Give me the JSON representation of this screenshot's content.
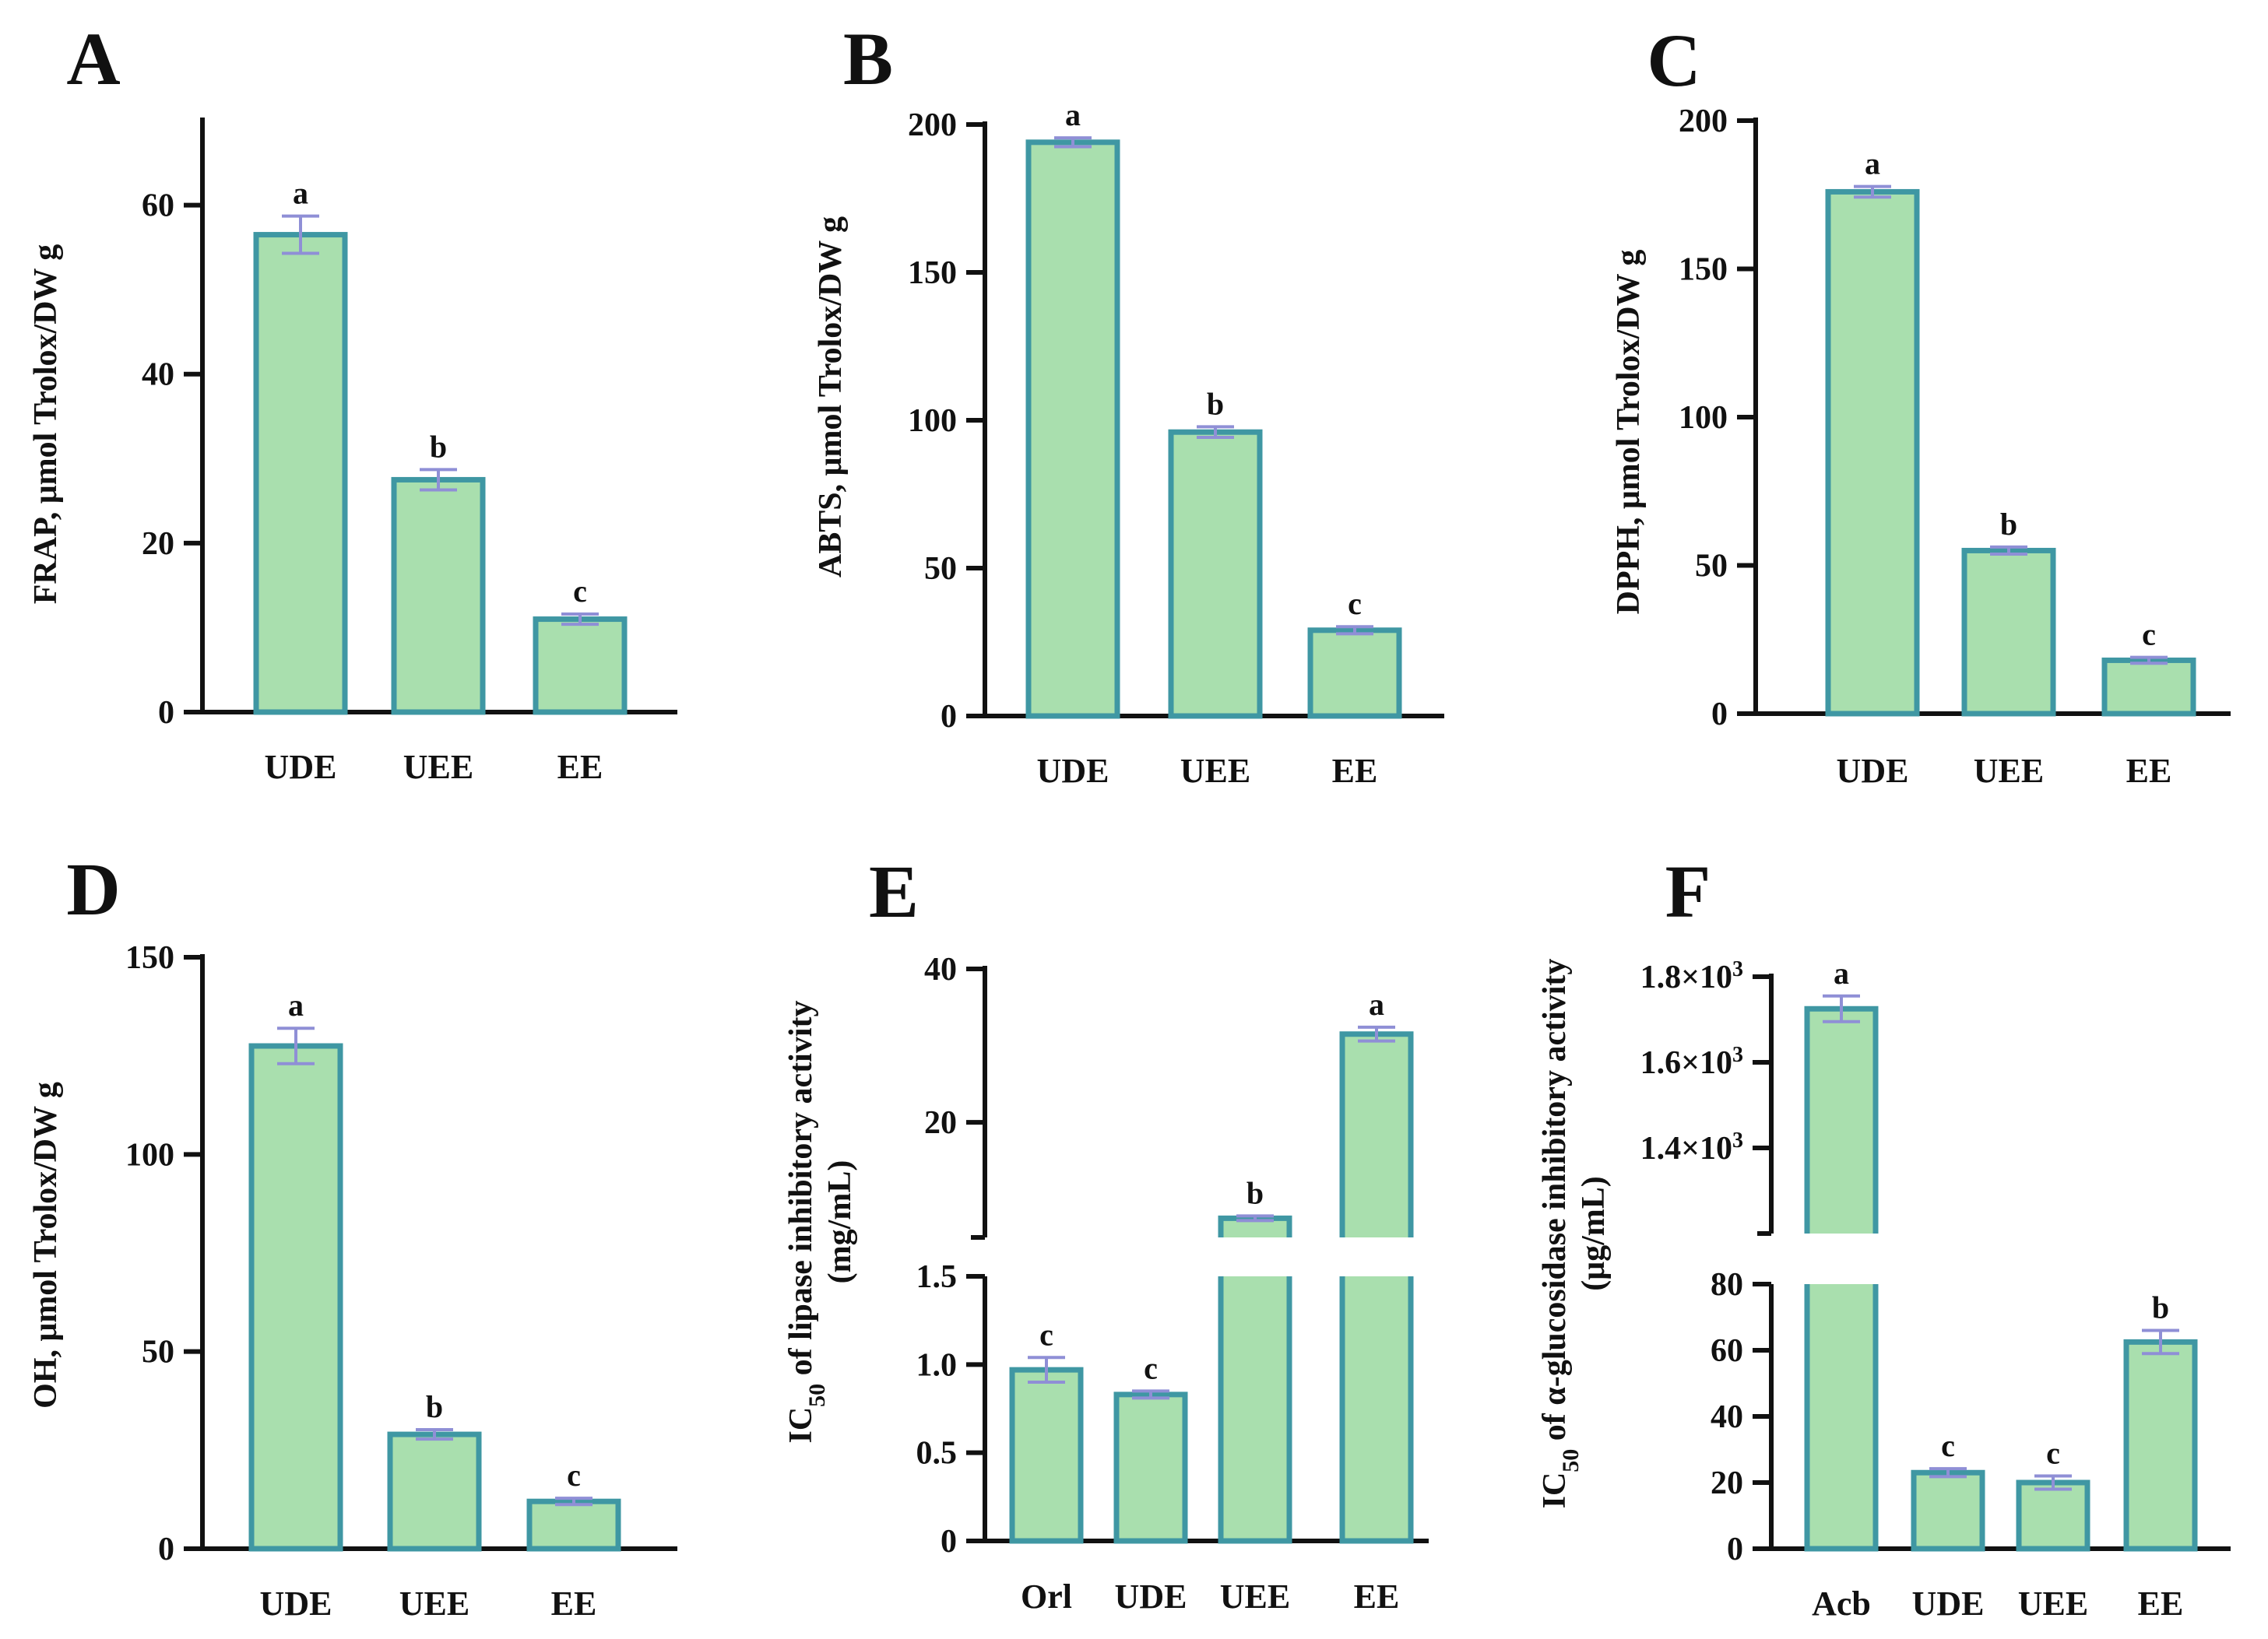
{
  "colors": {
    "bar_fill": "#a9dfae",
    "bar_edge": "#3f97a3",
    "error": "#8f8fd6",
    "axis": "#111111"
  },
  "chart_data": [
    {
      "panel": "A",
      "type": "bar",
      "categories": [
        "UDE",
        "UEE",
        "EE"
      ],
      "values": [
        56.5,
        27.5,
        11.0
      ],
      "errors": [
        2.2,
        1.2,
        0.6
      ],
      "significance": [
        "a",
        "b",
        "c"
      ],
      "ylabel": "FRAP, μmol Trolox/DW g",
      "ylim": [
        0,
        70
      ],
      "yticks": [
        0,
        20,
        40,
        60
      ],
      "ytick_labels": [
        "0",
        "20",
        "40",
        "60"
      ]
    },
    {
      "panel": "B",
      "type": "bar",
      "categories": [
        "UDE",
        "UEE",
        "EE"
      ],
      "values": [
        194,
        96,
        29
      ],
      "errors": [
        1.5,
        1.8,
        1.2
      ],
      "significance": [
        "a",
        "b",
        "c"
      ],
      "ylabel": "ABTS, μmol Trolox/DW g",
      "ylim": [
        0,
        200
      ],
      "yticks": [
        0,
        50,
        100,
        150,
        200
      ],
      "ytick_labels": [
        "0",
        "50",
        "100",
        "150",
        "200"
      ]
    },
    {
      "panel": "C",
      "type": "bar",
      "categories": [
        "UDE",
        "UEE",
        "EE"
      ],
      "values": [
        176,
        55,
        18
      ],
      "errors": [
        1.8,
        1.2,
        1.0
      ],
      "significance": [
        "a",
        "b",
        "c"
      ],
      "ylabel": "DPPH, μmol Trolox/DW g",
      "ylim": [
        0,
        200
      ],
      "yticks": [
        0,
        50,
        100,
        150,
        200
      ],
      "ytick_labels": [
        "0",
        "50",
        "100",
        "150",
        "200"
      ]
    },
    {
      "panel": "D",
      "type": "bar",
      "categories": [
        "UDE",
        "UEE",
        "EE"
      ],
      "values": [
        127.5,
        29,
        12
      ],
      "errors": [
        4.5,
        1.2,
        0.8
      ],
      "significance": [
        "a",
        "b",
        "c"
      ],
      "ylabel": "OH, μmol Trolox/DW g",
      "ylim": [
        0,
        150
      ],
      "yticks": [
        0,
        50,
        100,
        150
      ],
      "ytick_labels": [
        "0",
        "50",
        "100",
        "150"
      ]
    },
    {
      "panel": "E",
      "type": "bar",
      "categories": [
        "Orl",
        "UDE",
        "UEE",
        "EE"
      ],
      "values": [
        0.97,
        0.83,
        7.5,
        31.5
      ],
      "errors": [
        0.07,
        0.02,
        0.3,
        0.9
      ],
      "significance": [
        "c",
        "c",
        "b",
        "a"
      ],
      "ylabel_parts": [
        "IC",
        "50",
        " of  lipase inhibitory activity"
      ],
      "ylabel_line2": "(mg/mL)",
      "broken_axis": true,
      "lower_ylim": [
        0,
        1.5
      ],
      "lower_yticks": [
        0,
        0.5,
        1.0,
        1.5
      ],
      "lower_ytick_labels": [
        "0",
        "0.5",
        "1.0",
        "1.5"
      ],
      "upper_ylim": [
        5,
        40
      ],
      "upper_yticks": [
        20,
        40
      ],
      "upper_ytick_labels": [
        "20",
        "40"
      ]
    },
    {
      "panel": "F",
      "type": "bar",
      "categories": [
        "Acb",
        "UDE",
        "UEE",
        "EE"
      ],
      "values": [
        1725,
        23,
        20,
        62.5
      ],
      "errors": [
        30,
        1.2,
        2.0,
        3.5
      ],
      "significance": [
        "a",
        "c",
        "c",
        "b"
      ],
      "ylabel_parts": [
        "IC",
        "50",
        " of α-glucosidase inhibitory activity"
      ],
      "ylabel_line2": "(μg/mL)",
      "broken_axis": true,
      "lower_ylim": [
        0,
        80
      ],
      "lower_yticks": [
        0,
        20,
        40,
        60,
        80
      ],
      "lower_ytick_labels": [
        "0",
        "20",
        "40",
        "60",
        "80"
      ],
      "upper_ylim": [
        1200,
        1800
      ],
      "upper_yticks": [
        1400,
        1600,
        1800
      ],
      "upper_ytick_labels": [
        [
          "1.4×10",
          "3"
        ],
        [
          "1.6×10",
          "3"
        ],
        [
          "1.8×10",
          "3"
        ]
      ]
    }
  ]
}
